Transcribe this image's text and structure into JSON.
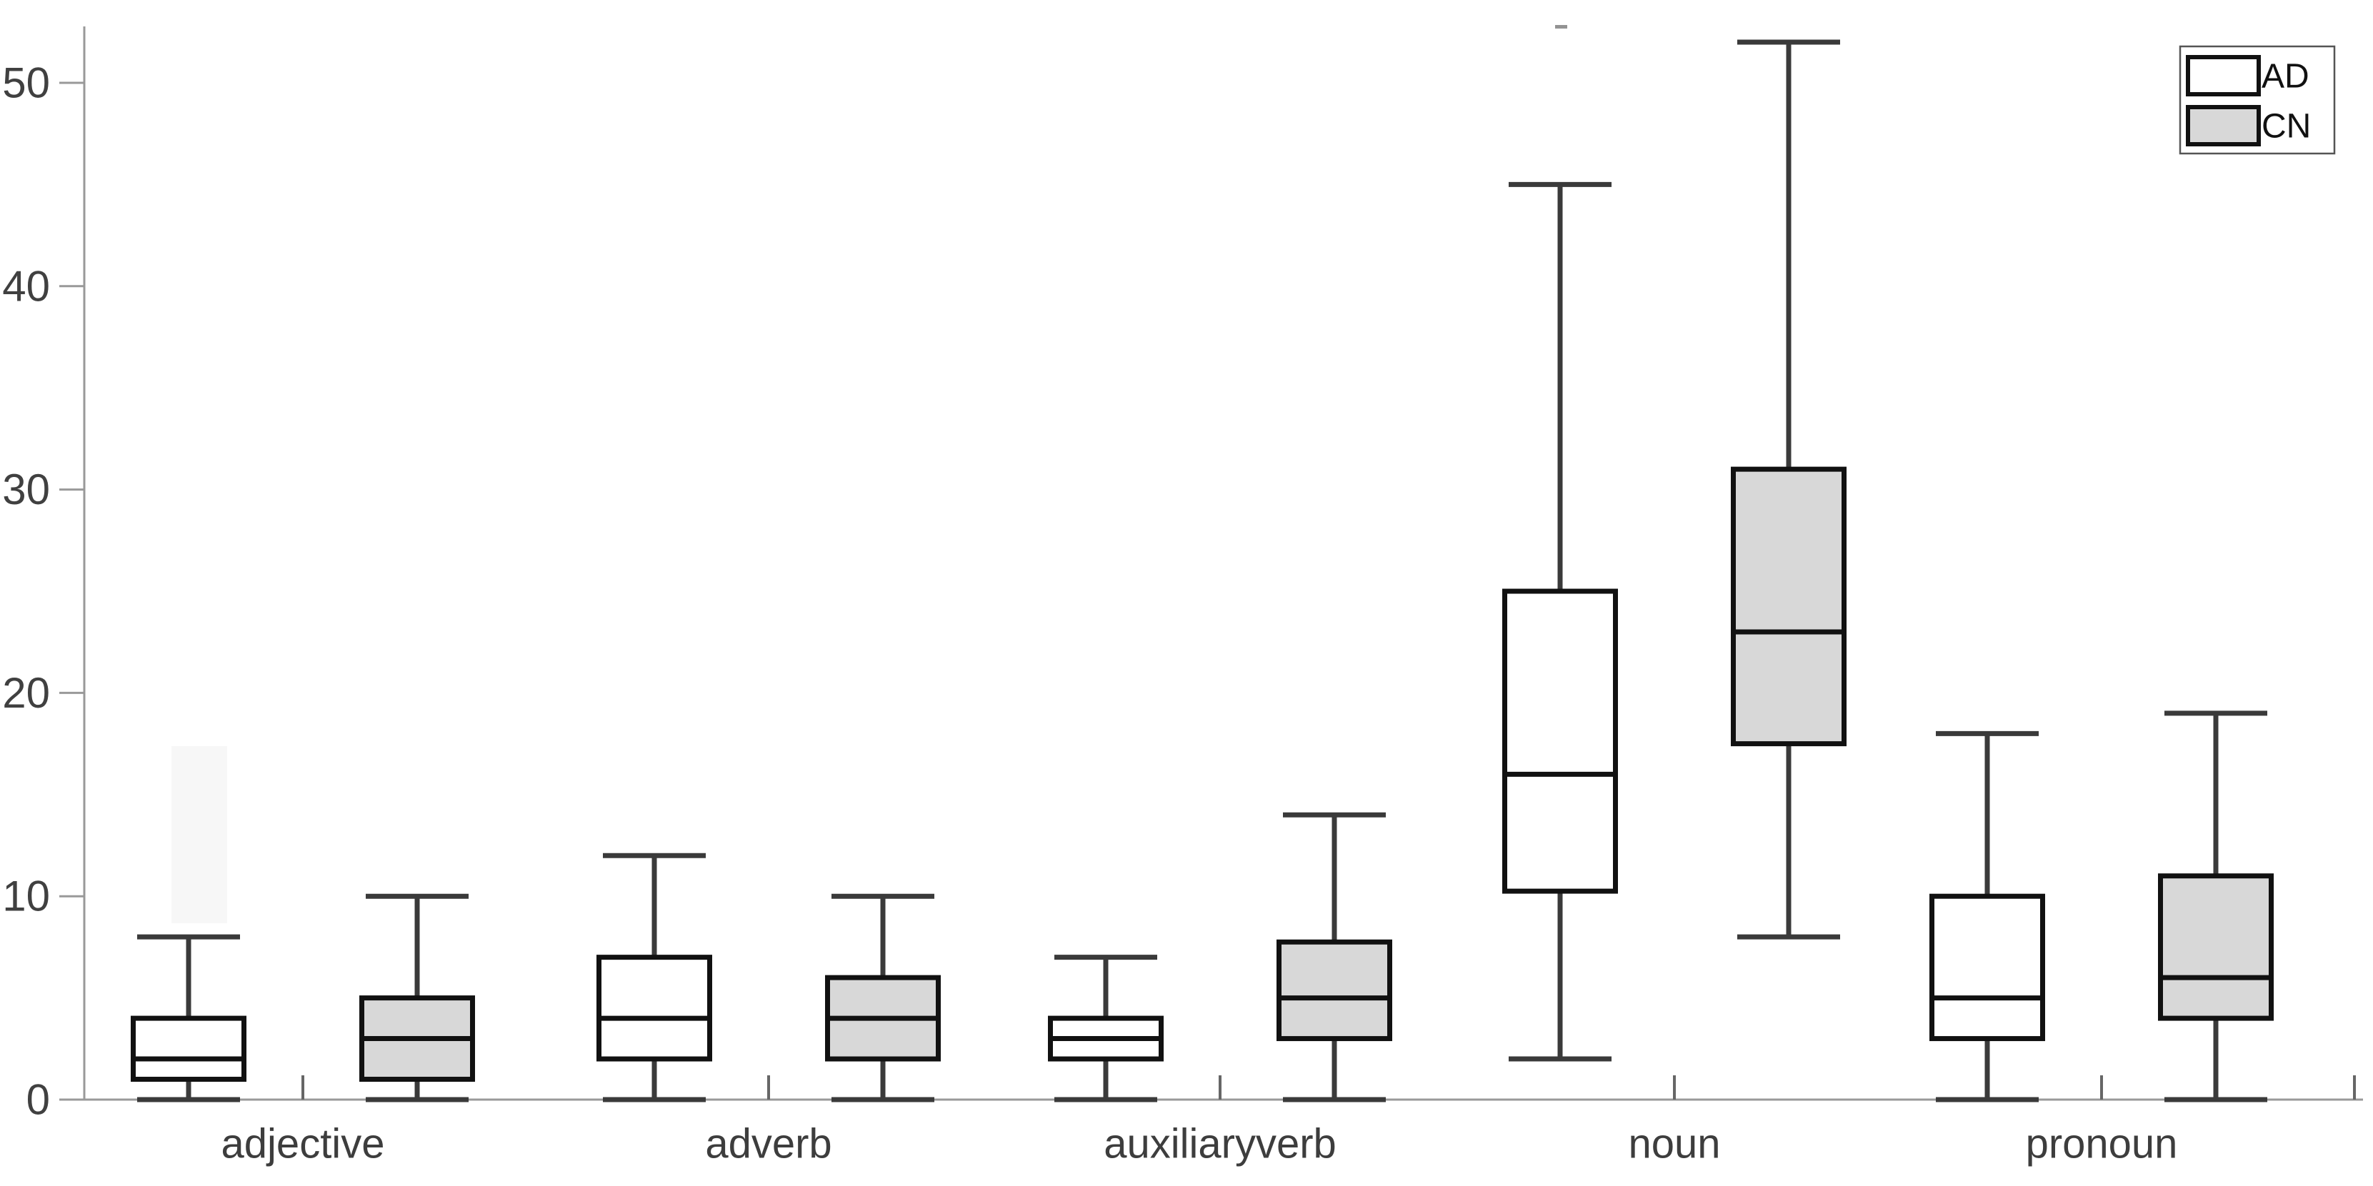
{
  "chart_data": {
    "type": "boxplot",
    "title": "",
    "xlabel": "",
    "ylabel": "",
    "categories": [
      "adjective",
      "adverb",
      "auxiliaryverb",
      "noun",
      "pronoun"
    ],
    "yticks": [
      "0",
      "10",
      "20",
      "30",
      "40",
      "50"
    ],
    "ytick_values": [
      0,
      10,
      20,
      30,
      40,
      50
    ],
    "ylim": [
      0,
      52.8
    ],
    "grid": false,
    "legend_position": "top-right",
    "series": [
      {
        "name": "AD",
        "fill": "#ffffff",
        "stats": [
          {
            "category": "adjective",
            "min": 0,
            "q1": 1,
            "median": 2,
            "q3": 4,
            "max": 8
          },
          {
            "category": "adverb",
            "min": 0,
            "q1": 2,
            "median": 4,
            "q3": 7,
            "max": 12
          },
          {
            "category": "auxiliaryverb",
            "min": 0,
            "q1": 2,
            "median": 3,
            "q3": 4,
            "max": 7
          },
          {
            "category": "noun",
            "min": 2,
            "q1": 10.25,
            "median": 16,
            "q3": 25,
            "max": 45
          },
          {
            "category": "pronoun",
            "min": 0,
            "q1": 3,
            "median": 5,
            "q3": 10,
            "max": 18
          }
        ]
      },
      {
        "name": "CN",
        "fill": "#d8d8d8",
        "stats": [
          {
            "category": "adjective",
            "min": 0,
            "q1": 1,
            "median": 3,
            "q3": 5,
            "max": 10
          },
          {
            "category": "adverb",
            "min": 0,
            "q1": 2,
            "median": 4,
            "q3": 6,
            "max": 10
          },
          {
            "category": "auxiliaryverb",
            "min": 0,
            "q1": 3,
            "median": 5,
            "q3": 7.75,
            "max": 14
          },
          {
            "category": "noun",
            "min": 8,
            "q1": 17.5,
            "median": 23,
            "q3": 31,
            "max": 52
          },
          {
            "category": "pronoun",
            "min": 0,
            "q1": 4,
            "median": 6,
            "q3": 11,
            "max": 19
          }
        ]
      }
    ],
    "colors": {
      "background": "#ffffff",
      "box_border": "#111111",
      "median_line": "#111111",
      "whisker": "#3a3a3a",
      "axis_line": "#999999",
      "tick_mark": "#666666",
      "tick_label": "#404040",
      "category_label": "#3d3d3d",
      "legend_border": "#555555",
      "legend_text": "#111111",
      "ad_fill": "#ffffff",
      "cn_fill": "#d8d8d8",
      "artifact_rect": "#f7f7f7",
      "artifact_dash": "#808080"
    }
  }
}
